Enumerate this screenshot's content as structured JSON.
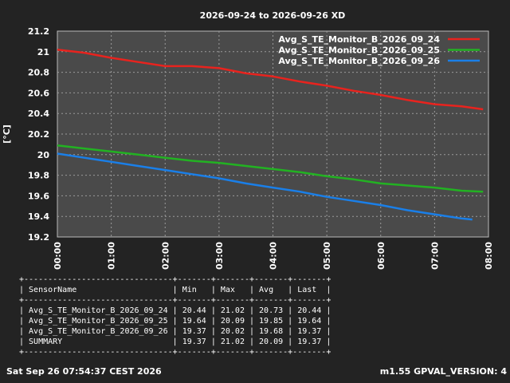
{
  "chart_data": {
    "type": "line",
    "title": "2026-09-24 to 2026-09-26 XD",
    "ylabel": "[°C]",
    "xlabel": "",
    "ylim": [
      19.2,
      21.2
    ],
    "xlim": [
      0,
      8
    ],
    "yticks": [
      "19.2",
      "19.4",
      "19.6",
      "19.8",
      "20",
      "20.2",
      "20.4",
      "20.6",
      "20.8",
      "21",
      "21.2"
    ],
    "xticks": [
      "00:00",
      "01:00",
      "02:00",
      "03:00",
      "04:00",
      "05:00",
      "06:00",
      "07:00",
      "08:00"
    ],
    "grid": true,
    "legend_position": "top-right",
    "series": [
      {
        "name": "Avg_S_TE_Monitor_B_2026_09_24",
        "color": "#e8231e",
        "x": [
          0,
          0.5,
          1,
          1.5,
          2,
          2.5,
          3,
          3.5,
          4,
          4.5,
          5,
          5.5,
          6,
          6.5,
          7,
          7.5,
          7.9
        ],
        "y": [
          21.02,
          20.99,
          20.94,
          20.9,
          20.86,
          20.86,
          20.84,
          20.79,
          20.76,
          20.71,
          20.67,
          20.62,
          20.58,
          20.53,
          20.49,
          20.47,
          20.44
        ]
      },
      {
        "name": "Avg_S_TE_Monitor_B_2026_09_25",
        "color": "#22b222",
        "x": [
          0,
          0.5,
          1,
          1.5,
          2,
          2.5,
          3,
          3.5,
          4,
          4.5,
          5,
          5.5,
          6,
          6.5,
          7,
          7.5,
          7.9
        ],
        "y": [
          20.09,
          20.06,
          20.03,
          20.0,
          19.97,
          19.94,
          19.92,
          19.89,
          19.86,
          19.83,
          19.79,
          19.76,
          19.72,
          19.7,
          19.68,
          19.65,
          19.64
        ]
      },
      {
        "name": "Avg_S_TE_Monitor_B_2026_09_26",
        "color": "#1a7fe8",
        "x": [
          0,
          0.5,
          1,
          1.5,
          2,
          2.5,
          3,
          3.5,
          4,
          4.5,
          5,
          5.5,
          6,
          6.5,
          7,
          7.5,
          7.7
        ],
        "y": [
          20.01,
          19.97,
          19.93,
          19.89,
          19.85,
          19.81,
          19.77,
          19.72,
          19.68,
          19.64,
          19.59,
          19.55,
          19.51,
          19.46,
          19.42,
          19.38,
          19.37
        ]
      }
    ]
  },
  "stats_table": {
    "columns": [
      "SensorName",
      "Min",
      "Max",
      "Avg",
      "Last"
    ],
    "rows": [
      [
        "Avg_S_TE_Monitor_B_2026_09_24",
        "20.44",
        "21.02",
        "20.73",
        "20.44"
      ],
      [
        "Avg_S_TE_Monitor_B_2026_09_25",
        "19.64",
        "20.09",
        "19.85",
        "19.64"
      ],
      [
        "Avg_S_TE_Monitor_B_2026_09_26",
        "19.37",
        "20.02",
        "19.68",
        "19.37"
      ],
      [
        "SUMMARY",
        "19.37",
        "21.02",
        "20.09",
        "19.37"
      ]
    ]
  },
  "footer": {
    "left": "Sat Sep 26 07:54:37 CEST 2026",
    "right": "m1.55 GPVAL_VERSION: 4"
  }
}
